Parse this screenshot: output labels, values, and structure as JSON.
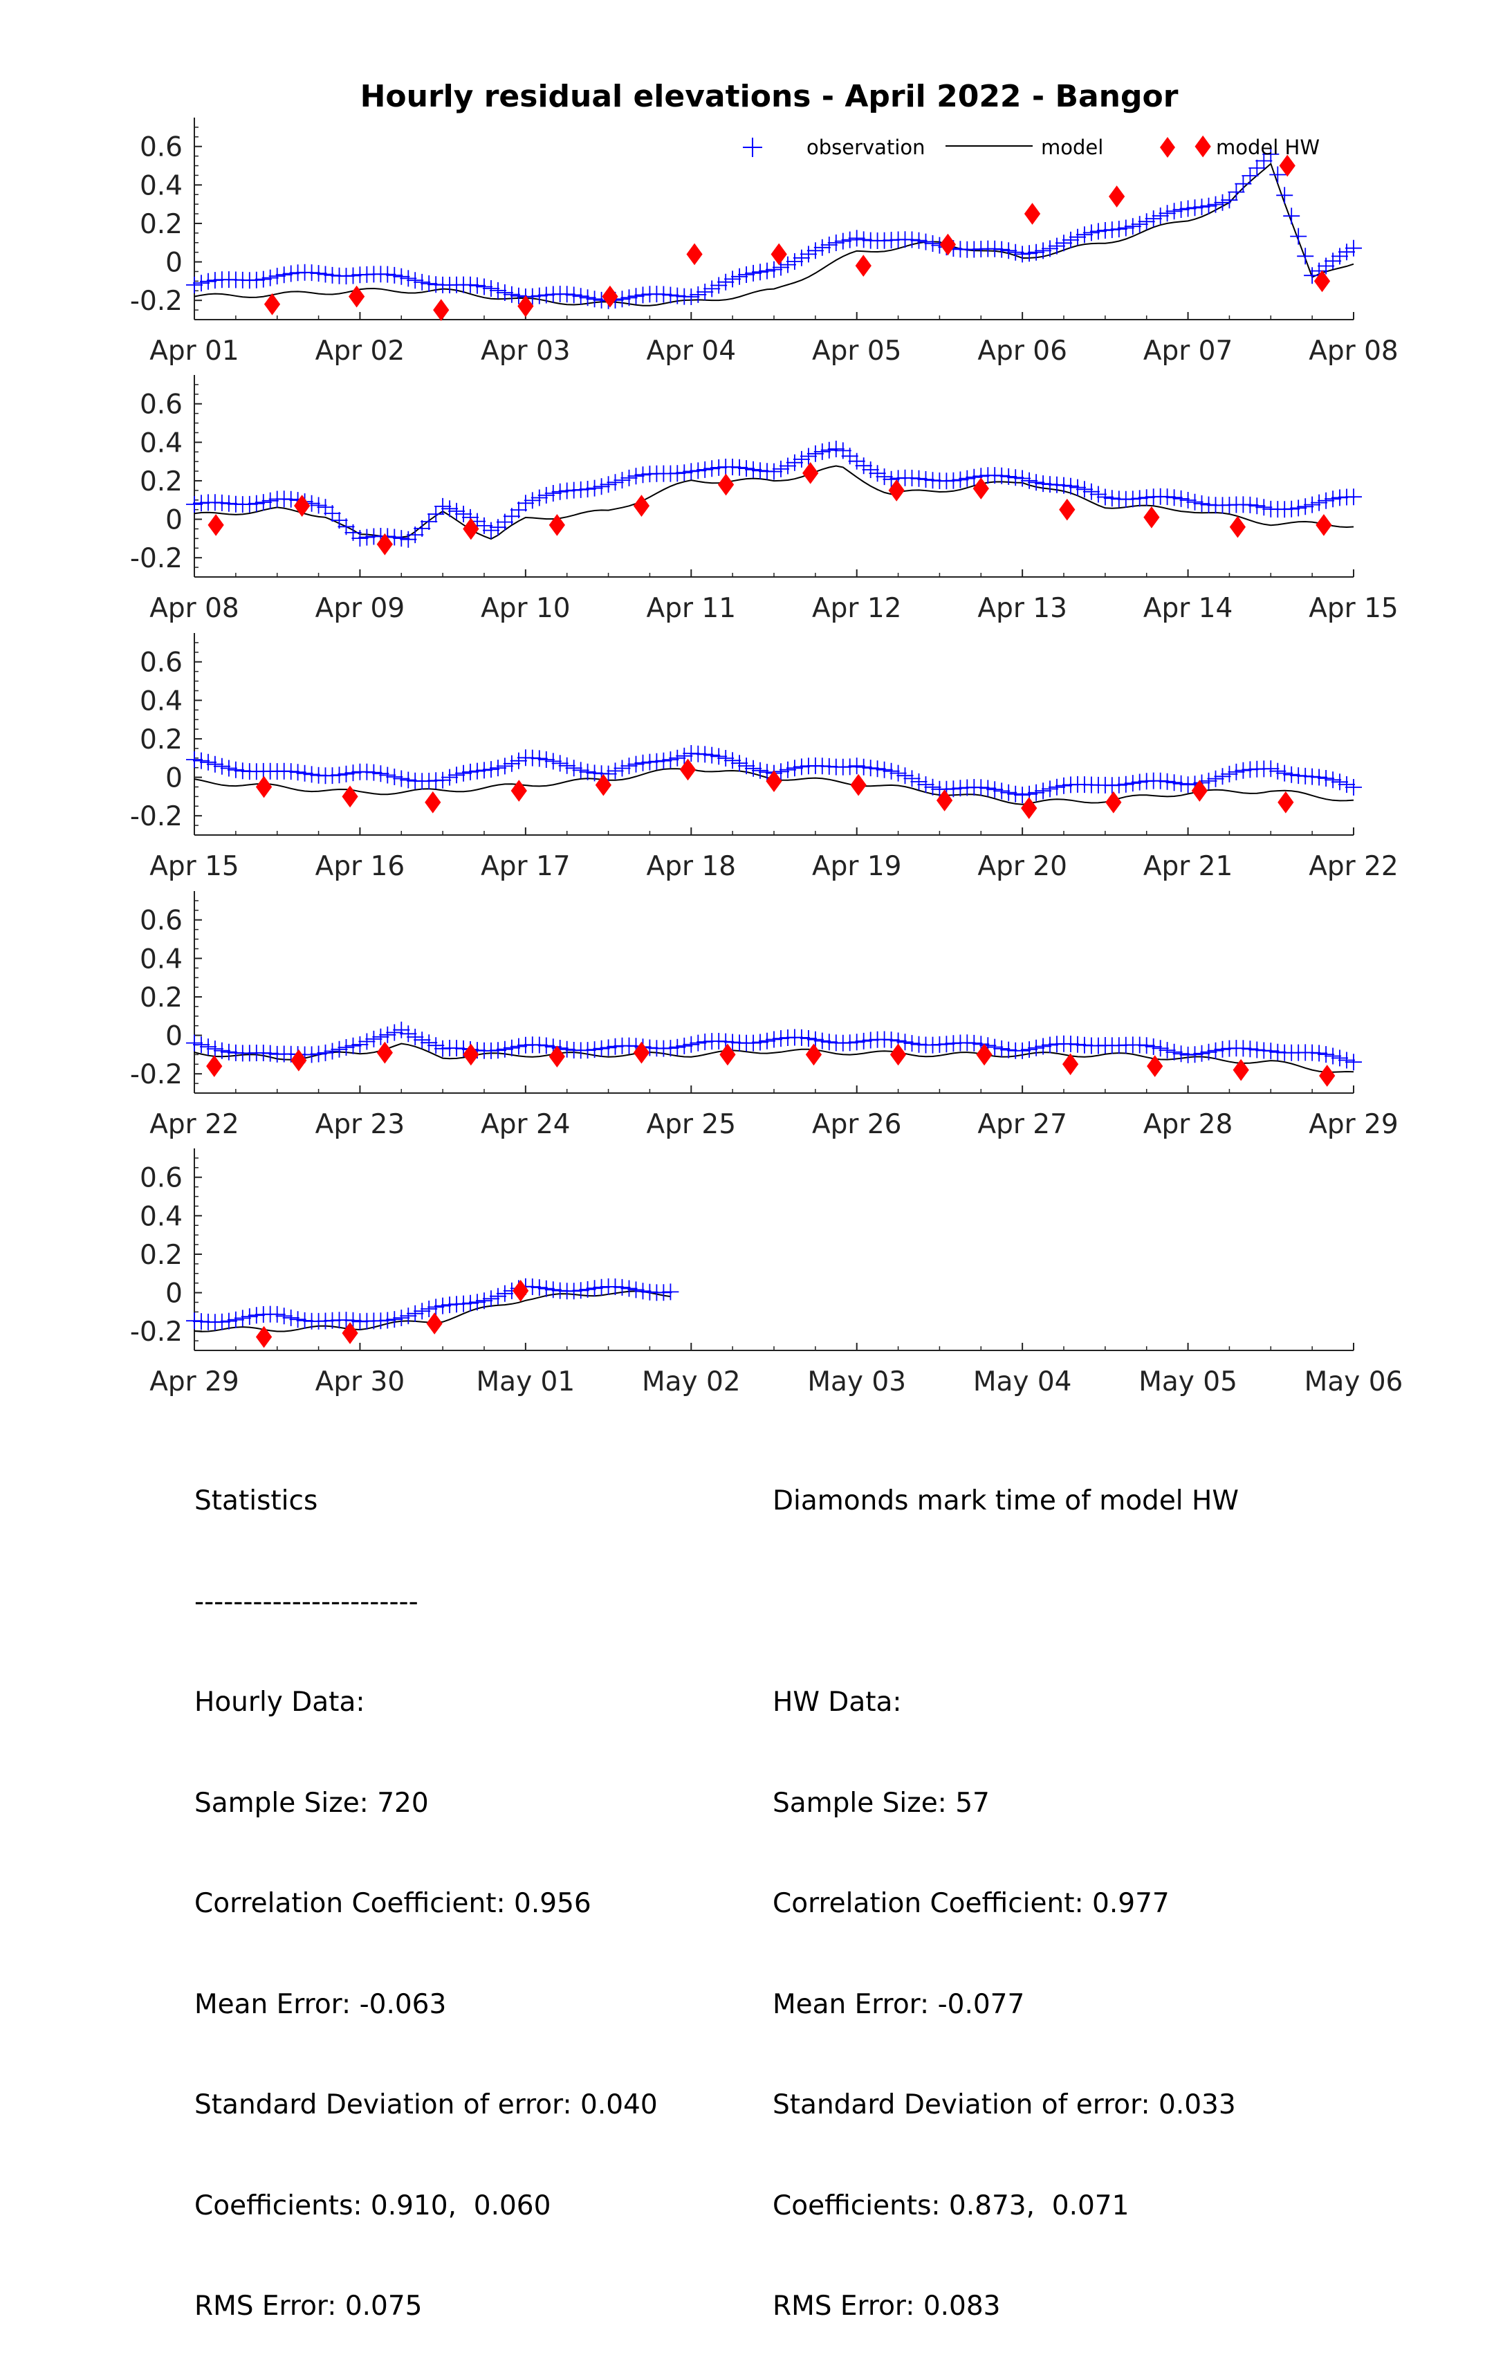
{
  "chart_data": {
    "type": "line",
    "title": "Hourly residual elevations - April  2022 - Bangor",
    "legend": {
      "placement": "top-right",
      "entries": [
        {
          "label": "observation",
          "marker": "plus",
          "color": "#0000ff"
        },
        {
          "label": "model",
          "marker": "line",
          "color": "#000000"
        },
        {
          "label": "model HW",
          "marker": "diamond",
          "color": "#ff0000"
        }
      ]
    },
    "ylim": [
      -0.3,
      0.75
    ],
    "yticks": [
      -0.2,
      0,
      0.2,
      0.4,
      0.6
    ],
    "ytick_labels": [
      "-0.2",
      "0",
      "0.2",
      "0.4",
      "0.6"
    ],
    "grid": false,
    "panels": [
      {
        "xtick_labels": [
          "Apr 01",
          "Apr 02",
          "Apr 03",
          "Apr 04",
          "Apr 05",
          "Apr 06",
          "Apr 07",
          "Apr 08"
        ],
        "observation_x_days": [
          0,
          0.5,
          1,
          1.5,
          2,
          2.5,
          3,
          3.5,
          4,
          4.5,
          5,
          5.5,
          6,
          6.25,
          6.5,
          6.75,
          7
        ],
        "observation": [
          -0.12,
          -0.07,
          -0.06,
          -0.11,
          -0.17,
          -0.19,
          -0.17,
          -0.03,
          0.13,
          0.09,
          0.04,
          0.16,
          0.27,
          0.33,
          0.55,
          -0.06,
          0.06
        ],
        "model_x_days": [
          0,
          0.5,
          1,
          1.5,
          2,
          2.5,
          3,
          3.5,
          4,
          4.5,
          5,
          5.5,
          6,
          6.25,
          6.5,
          6.75,
          7
        ],
        "model": [
          -0.18,
          -0.17,
          -0.15,
          -0.15,
          -0.2,
          -0.22,
          -0.21,
          -0.15,
          0.05,
          0.1,
          0.02,
          0.1,
          0.22,
          0.3,
          0.52,
          -0.09,
          0.0
        ],
        "hw_x_days": [
          0.47,
          0.98,
          1.49,
          2.0,
          2.51,
          3.02,
          3.53,
          4.04,
          4.55,
          5.06,
          5.57,
          6.09,
          6.6,
          6.81,
          7.12
        ],
        "hw": [
          -0.22,
          -0.18,
          -0.25,
          -0.23,
          -0.18,
          0.04,
          0.04,
          -0.02,
          0.09,
          0.25,
          0.34,
          0.6,
          0.5,
          -0.1,
          -0.1
        ]
      },
      {
        "xtick_labels": [
          "Apr 08",
          "Apr 09",
          "Apr 10",
          "Apr 11",
          "Apr 12",
          "Apr 13",
          "Apr 14",
          "Apr 15"
        ],
        "observation_x_days": [
          0,
          0.5,
          0.8,
          1,
          1.3,
          1.5,
          1.8,
          2,
          2.5,
          3,
          3.5,
          3.9,
          4.2,
          4.5,
          5,
          5.5,
          6,
          6.5,
          7
        ],
        "observation": [
          0.07,
          0.1,
          0.07,
          -0.1,
          -0.1,
          0.07,
          -0.06,
          0.09,
          0.19,
          0.26,
          0.26,
          0.37,
          0.2,
          0.21,
          0.22,
          0.12,
          0.1,
          0.05,
          0.11
        ],
        "model_x_days": [
          0,
          0.5,
          0.8,
          1,
          1.3,
          1.5,
          1.8,
          2,
          2.5,
          3,
          3.5,
          3.9,
          4.2,
          4.5,
          5,
          5.5,
          6,
          6.5,
          7
        ],
        "model": [
          0.02,
          0.05,
          0.02,
          -0.09,
          -0.08,
          0.03,
          -0.1,
          0.0,
          0.04,
          0.2,
          0.2,
          0.27,
          0.13,
          0.15,
          0.2,
          0.07,
          0.05,
          -0.02,
          -0.03
        ],
        "hw_x_days": [
          0.13,
          0.65,
          1.15,
          1.67,
          2.19,
          2.7,
          3.21,
          3.72,
          4.24,
          4.75,
          5.27,
          5.78,
          6.3,
          6.82,
          7.33
        ],
        "hw": [
          -0.03,
          0.07,
          -0.13,
          -0.05,
          -0.03,
          0.07,
          0.18,
          0.24,
          0.15,
          0.16,
          0.05,
          0.01,
          -0.04,
          -0.03,
          -0.03
        ]
      },
      {
        "xtick_labels": [
          "Apr 15",
          "Apr 16",
          "Apr 17",
          "Apr 18",
          "Apr 19",
          "Apr 20",
          "Apr 21",
          "Apr 22"
        ],
        "observation_x_days": [
          0,
          0.5,
          1,
          1.5,
          2,
          2.5,
          3,
          3.5,
          4,
          4.5,
          5,
          5.5,
          6,
          6.5,
          7
        ],
        "observation": [
          0.08,
          0.02,
          0.02,
          -0.02,
          0.1,
          0.02,
          0.13,
          0.03,
          0.07,
          -0.05,
          -0.08,
          -0.03,
          -0.03,
          0.05,
          -0.05
        ],
        "model_x_days": [
          0,
          0.5,
          1,
          1.5,
          2,
          2.5,
          3,
          3.5,
          4,
          4.5,
          5,
          5.5,
          6,
          6.5,
          7
        ],
        "model": [
          -0.02,
          -0.05,
          -0.08,
          -0.07,
          -0.04,
          -0.01,
          0.05,
          0.0,
          -0.03,
          -0.08,
          -0.13,
          -0.12,
          -0.08,
          -0.07,
          -0.12
        ],
        "hw_x_days": [
          0.42,
          0.94,
          1.44,
          1.96,
          2.47,
          2.98,
          3.5,
          4.01,
          4.53,
          5.04,
          5.55,
          6.07,
          6.59
        ],
        "hw": [
          -0.05,
          -0.1,
          -0.13,
          -0.07,
          -0.04,
          0.04,
          -0.02,
          -0.04,
          -0.12,
          -0.16,
          -0.13,
          -0.07,
          -0.13
        ]
      },
      {
        "xtick_labels": [
          "Apr 22",
          "Apr 23",
          "Apr 24",
          "Apr 25",
          "Apr 26",
          "Apr 27",
          "Apr 28",
          "Apr 29"
        ],
        "observation_x_days": [
          0,
          0.5,
          1,
          1.25,
          1.5,
          2,
          2.5,
          3,
          3.5,
          4,
          4.5,
          5,
          5.5,
          6,
          6.5,
          7
        ],
        "observation": [
          -0.05,
          -0.11,
          -0.06,
          0.04,
          -0.08,
          -0.06,
          -0.07,
          -0.05,
          -0.02,
          -0.03,
          -0.04,
          -0.07,
          -0.04,
          -0.09,
          -0.07,
          -0.13
        ],
        "model_x_days": [
          0,
          0.5,
          1,
          1.25,
          1.5,
          2,
          2.5,
          3,
          3.5,
          4,
          4.5,
          5,
          5.5,
          6,
          6.5,
          7
        ],
        "model": [
          -0.09,
          -0.12,
          -0.09,
          -0.05,
          -0.11,
          -0.1,
          -0.1,
          -0.1,
          -0.08,
          -0.09,
          -0.1,
          -0.1,
          -0.1,
          -0.12,
          -0.14,
          -0.2
        ],
        "hw_x_days": [
          0.12,
          0.63,
          1.15,
          1.67,
          2.19,
          2.7,
          3.22,
          3.74,
          4.25,
          4.77,
          5.29,
          5.8,
          6.32,
          6.84
        ],
        "hw": [
          -0.16,
          -0.13,
          -0.09,
          -0.1,
          -0.11,
          -0.09,
          -0.1,
          -0.1,
          -0.1,
          -0.1,
          -0.15,
          -0.16,
          -0.18,
          -0.21
        ]
      },
      {
        "xtick_labels": [
          "Apr 29",
          "Apr 30",
          "May 01",
          "May 02",
          "May 03",
          "May 04",
          "May 05",
          "May 06"
        ],
        "observation_x_days": [
          0,
          0.5,
          1,
          1.5,
          2,
          2.5,
          2.9
        ],
        "observation": [
          -0.15,
          -0.12,
          -0.16,
          -0.08,
          0.02,
          0.02,
          0.01
        ],
        "model_x_days": [
          0,
          0.5,
          1,
          1.5,
          2,
          2.5,
          2.9
        ],
        "model": [
          -0.19,
          -0.19,
          -0.18,
          -0.14,
          -0.03,
          0.0,
          -0.01
        ],
        "hw_x_days": [
          0.42,
          0.94,
          1.45,
          1.97
        ],
        "hw": [
          -0.23,
          -0.21,
          -0.16,
          0.01
        ]
      }
    ]
  },
  "statistics": {
    "left_title": "Statistics",
    "left_rule": "-----------------------",
    "hourly_heading": "Hourly Data:",
    "hourly_sample_size": "Sample Size: 720",
    "hourly_correlation": "Correlation Coefficient: 0.956",
    "hourly_mean_error": "Mean Error: -0.063",
    "hourly_std": "Standard Deviation of error: 0.040",
    "hourly_coefficients": "Coefficients: 0.910,  0.060",
    "hourly_rms": "RMS Error: 0.075",
    "right_title": "Diamonds mark time of model HW",
    "hw_heading": "HW Data:",
    "hw_sample_size": "Sample Size: 57",
    "hw_correlation": "Correlation Coefficient: 0.977",
    "hw_mean_error": "Mean Error: -0.077",
    "hw_std": "Standard Deviation of error: 0.033",
    "hw_coefficients": "Coefficients: 0.873,  0.071",
    "hw_rms": "RMS Error: 0.083"
  }
}
